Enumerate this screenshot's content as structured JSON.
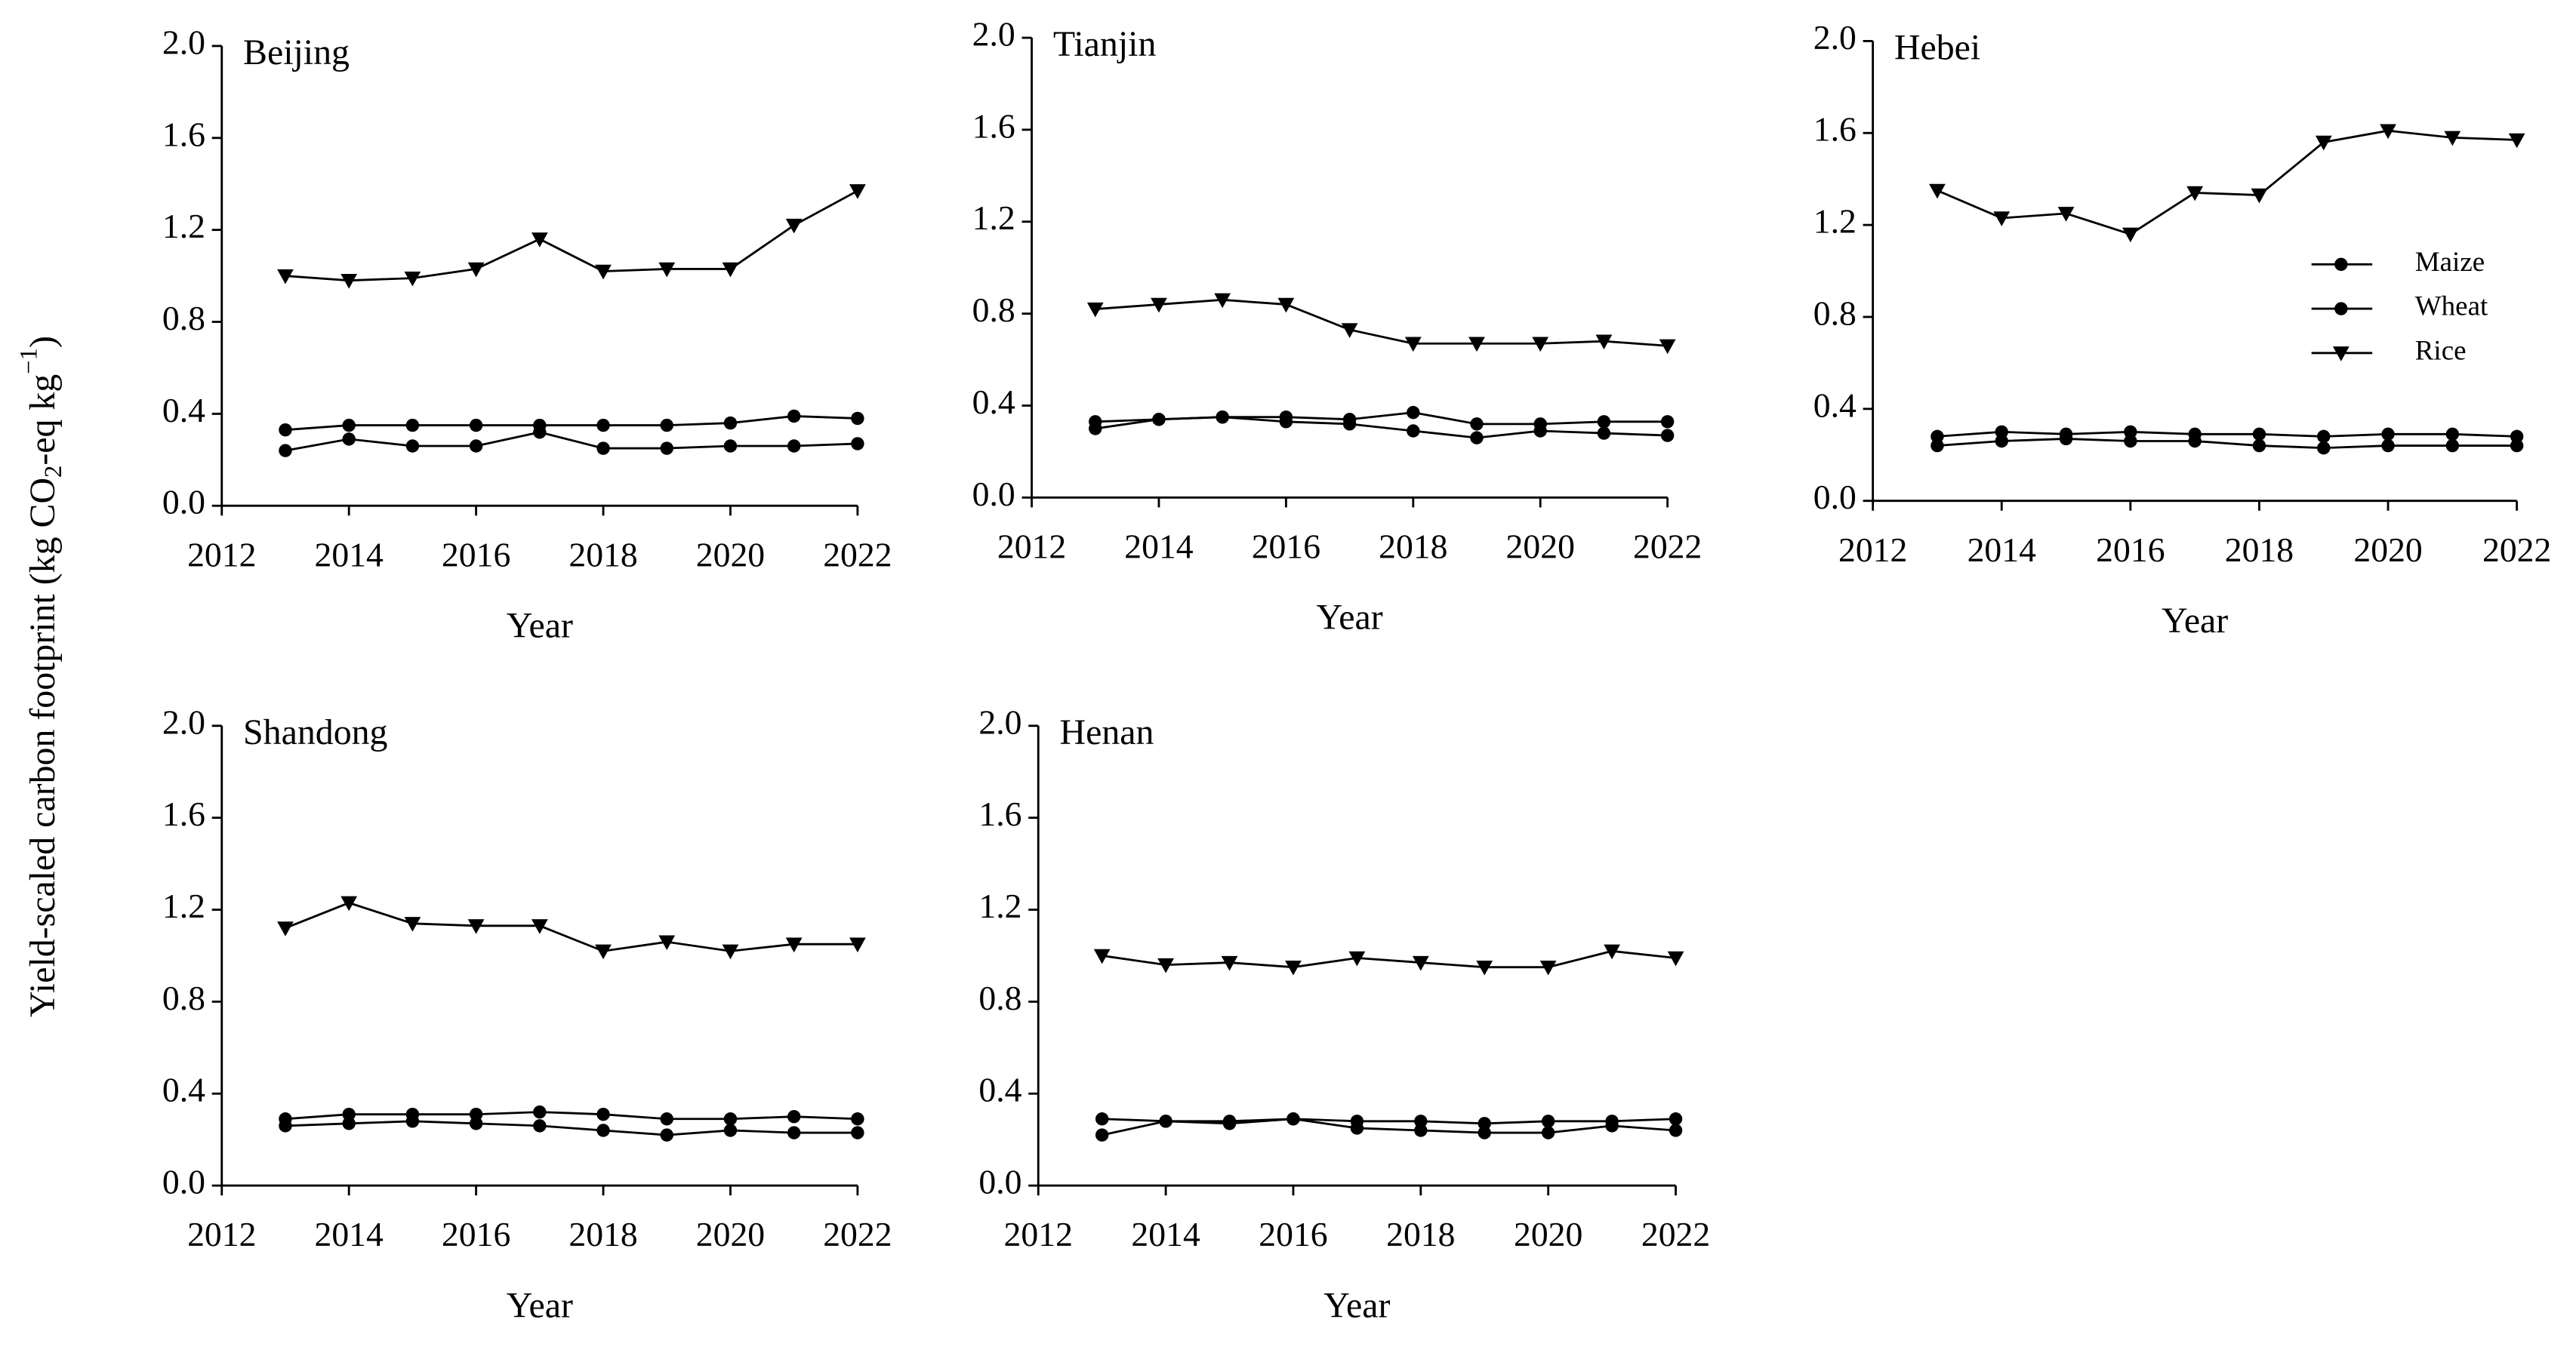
{
  "y_label": {
    "text": "Yield-scaled carbon footprint (kg CO",
    "sub": "2",
    "mid": "-eq kg",
    "sup": "−1",
    "end": ")"
  },
  "chart_data": [
    {
      "type": "line",
      "title": "Beijing",
      "x_label": "Year",
      "x": [
        2013,
        2014,
        2015,
        2016,
        2017,
        2018,
        2019,
        2020,
        2021,
        2022
      ],
      "series": [
        {
          "name": "Maize",
          "color": "#000000",
          "marker": "circle",
          "values": [
            0.33,
            0.35,
            0.35,
            0.35,
            0.35,
            0.35,
            0.35,
            0.36,
            0.39,
            0.38
          ]
        },
        {
          "name": "Wheat",
          "color": "#000000",
          "marker": "circle",
          "values": [
            0.24,
            0.29,
            0.26,
            0.26,
            0.32,
            0.25,
            0.25,
            0.26,
            0.26,
            0.27
          ]
        },
        {
          "name": "Rice",
          "color": "#000000",
          "marker": "triangle-down",
          "values": [
            1.0,
            0.98,
            0.99,
            1.03,
            1.16,
            1.02,
            1.03,
            1.03,
            1.22,
            1.37
          ]
        }
      ],
      "xlim": [
        2012,
        2022
      ],
      "xticks": [
        2012,
        2014,
        2016,
        2018,
        2020,
        2022
      ],
      "ylim": [
        0,
        2
      ],
      "yticks": [
        {
          "value": 0,
          "label": "0.0"
        },
        0.4,
        0.8,
        1.2,
        1.6,
        {
          "value": 2,
          "label": "2.0"
        }
      ]
    },
    {
      "type": "line",
      "title": "Tianjin",
      "x_label": "Year",
      "x": [
        2013,
        2014,
        2015,
        2016,
        2017,
        2018,
        2019,
        2020,
        2021,
        2022
      ],
      "series": [
        {
          "name": "Maize",
          "color": "#000000",
          "marker": "circle",
          "values": [
            0.33,
            0.34,
            0.35,
            0.35,
            0.34,
            0.37,
            0.32,
            0.32,
            0.33,
            0.33
          ]
        },
        {
          "name": "Wheat",
          "color": "#000000",
          "marker": "circle",
          "values": [
            0.3,
            0.34,
            0.35,
            0.33,
            0.32,
            0.29,
            0.26,
            0.29,
            0.28,
            0.27
          ]
        },
        {
          "name": "Rice",
          "color": "#000000",
          "marker": "triangle-down",
          "values": [
            0.82,
            0.84,
            0.86,
            0.84,
            0.73,
            0.67,
            0.67,
            0.67,
            0.68,
            0.66
          ]
        }
      ],
      "xlim": [
        2012,
        2022
      ],
      "xticks": [
        2012,
        2014,
        2016,
        2018,
        2020,
        2022
      ],
      "ylim": [
        0,
        2
      ],
      "yticks": [
        {
          "value": 0,
          "label": "0.0"
        },
        0.4,
        0.8,
        1.2,
        1.6,
        {
          "value": 2,
          "label": "2.0"
        }
      ]
    },
    {
      "type": "line",
      "title": "Hebei",
      "x_label": "Year",
      "legend": "upper right",
      "x": [
        2013,
        2014,
        2015,
        2016,
        2017,
        2018,
        2019,
        2020,
        2021,
        2022
      ],
      "series": [
        {
          "name": "Maize",
          "color": "#000000",
          "marker": "circle",
          "values": [
            0.28,
            0.3,
            0.29,
            0.3,
            0.29,
            0.29,
            0.28,
            0.29,
            0.29,
            0.28
          ]
        },
        {
          "name": "Wheat",
          "color": "#000000",
          "marker": "circle",
          "values": [
            0.24,
            0.26,
            0.27,
            0.26,
            0.26,
            0.24,
            0.23,
            0.24,
            0.24,
            0.24
          ]
        },
        {
          "name": "Rice",
          "color": "#000000",
          "marker": "triangle-down",
          "values": [
            1.35,
            1.23,
            1.25,
            1.16,
            1.34,
            1.33,
            1.56,
            1.61,
            1.58,
            1.57
          ]
        }
      ],
      "xlim": [
        2012,
        2022
      ],
      "xticks": [
        2012,
        2014,
        2016,
        2018,
        2020,
        2022
      ],
      "ylim": [
        0,
        2
      ],
      "yticks": [
        {
          "value": 0,
          "label": "0.0"
        },
        0.4,
        0.8,
        1.2,
        1.6,
        {
          "value": 2,
          "label": "2.0"
        }
      ]
    },
    {
      "type": "line",
      "title": "Shandong",
      "x_label": "Year",
      "x": [
        2013,
        2014,
        2015,
        2016,
        2017,
        2018,
        2019,
        2020,
        2021,
        2022
      ],
      "series": [
        {
          "name": "Maize",
          "color": "#000000",
          "marker": "circle",
          "values": [
            0.29,
            0.31,
            0.31,
            0.31,
            0.32,
            0.31,
            0.29,
            0.29,
            0.3,
            0.29
          ]
        },
        {
          "name": "Wheat",
          "color": "#000000",
          "marker": "circle",
          "values": [
            0.26,
            0.27,
            0.28,
            0.27,
            0.26,
            0.24,
            0.22,
            0.24,
            0.23,
            0.23
          ]
        },
        {
          "name": "Rice",
          "color": "#000000",
          "marker": "triangle-down",
          "values": [
            1.12,
            1.23,
            1.14,
            1.13,
            1.13,
            1.02,
            1.06,
            1.02,
            1.05,
            1.05
          ]
        }
      ],
      "xlim": [
        2012,
        2022
      ],
      "xticks": [
        2012,
        2014,
        2016,
        2018,
        2020,
        2022
      ],
      "ylim": [
        0,
        2
      ],
      "yticks": [
        {
          "value": 0,
          "label": "0.0"
        },
        0.4,
        0.8,
        1.2,
        1.6,
        {
          "value": 2,
          "label": "2.0"
        }
      ]
    },
    {
      "type": "line",
      "title": "Henan",
      "x_label": "Year",
      "x": [
        2013,
        2014,
        2015,
        2016,
        2017,
        2018,
        2019,
        2020,
        2021,
        2022
      ],
      "series": [
        {
          "name": "Maize",
          "color": "#000000",
          "marker": "circle",
          "values": [
            0.29,
            0.28,
            0.28,
            0.29,
            0.28,
            0.28,
            0.27,
            0.28,
            0.28,
            0.29
          ]
        },
        {
          "name": "Wheat",
          "color": "#000000",
          "marker": "circle",
          "values": [
            0.22,
            0.28,
            0.27,
            0.29,
            0.25,
            0.24,
            0.23,
            0.23,
            0.26,
            0.24
          ]
        },
        {
          "name": "Rice",
          "color": "#000000",
          "marker": "triangle-down",
          "values": [
            1.0,
            0.96,
            0.97,
            0.95,
            0.99,
            0.97,
            0.95,
            0.95,
            1.02,
            0.99
          ]
        }
      ],
      "xlim": [
        2012,
        2022
      ],
      "xticks": [
        2012,
        2014,
        2016,
        2018,
        2020,
        2022
      ],
      "ylim": [
        0,
        2
      ],
      "yticks": [
        {
          "value": 0,
          "label": "0.0"
        },
        0.4,
        0.8,
        1.2,
        1.6,
        {
          "value": 2,
          "label": "2.0"
        }
      ]
    }
  ]
}
